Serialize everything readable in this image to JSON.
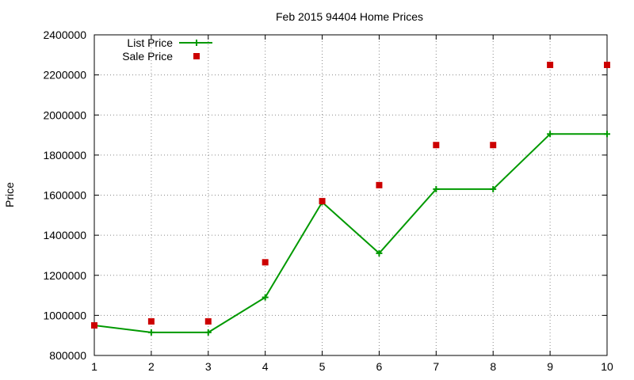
{
  "chart_data": {
    "type": "line",
    "title": "Feb 2015 94404 Home Prices",
    "xlabel": "",
    "ylabel": "Price",
    "x": [
      1,
      2,
      3,
      4,
      5,
      6,
      7,
      8,
      9,
      10
    ],
    "xlim": [
      1,
      10
    ],
    "ylim": [
      800000,
      2400000
    ],
    "x_ticks": [
      "1",
      "2",
      "3",
      "4",
      "5",
      "6",
      "7",
      "8",
      "9",
      "10"
    ],
    "y_ticks": [
      "800000",
      "1000000",
      "1200000",
      "1400000",
      "1600000",
      "1800000",
      "2000000",
      "2200000",
      "2400000"
    ],
    "grid": true,
    "legend_position": "top-left",
    "series": [
      {
        "name": "List Price",
        "kind": "line-with-markers",
        "marker": "plus",
        "color": "#009900",
        "values": [
          950000,
          915000,
          915000,
          1090000,
          1565000,
          1310000,
          1630000,
          1630000,
          1905000,
          1905000
        ]
      },
      {
        "name": "Sale Price",
        "kind": "points",
        "marker": "square",
        "color": "#cc0000",
        "values": [
          950000,
          970000,
          970000,
          1265000,
          1570000,
          1650000,
          1850000,
          1850000,
          2250000,
          2250000
        ]
      }
    ]
  }
}
